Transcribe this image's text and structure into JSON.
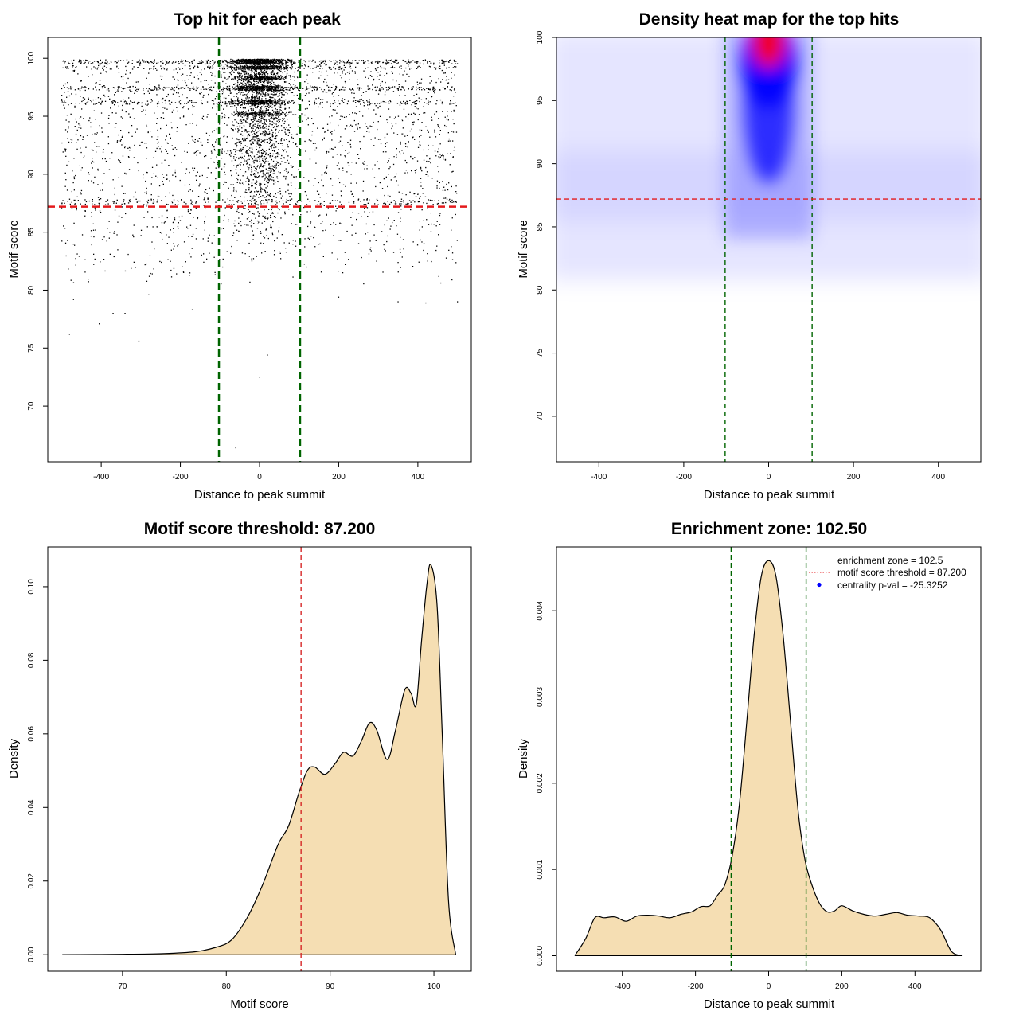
{
  "chart_data": [
    {
      "type": "scatter",
      "title": "Top hit for each peak",
      "xlabel": "Distance to peak summit",
      "ylabel": "Motif score",
      "xlim": [
        -535,
        535
      ],
      "ylim": [
        65.2,
        101.8
      ],
      "xticks": [
        -400,
        -200,
        0,
        200,
        400
      ],
      "yticks": [
        70,
        75,
        80,
        85,
        90,
        95,
        100
      ],
      "vlines": [
        -102.5,
        102.5
      ],
      "hline": 87.2,
      "vline_color": "#006400",
      "hline_color": "#e41a1c",
      "point_color": "#000000",
      "score_bands": [
        99.7,
        99.2,
        98.3,
        97.4,
        96.2,
        95.2,
        94.0,
        93.5
      ],
      "outliers": [
        {
          "x": -480,
          "y": 76.2
        },
        {
          "x": -405,
          "y": 77.1
        },
        {
          "x": -305,
          "y": 75.6
        },
        {
          "x": -370,
          "y": 78.0
        },
        {
          "x": -340,
          "y": 78.0
        },
        {
          "x": 20,
          "y": 74.4
        },
        {
          "x": 0,
          "y": 72.5
        },
        {
          "x": -60,
          "y": 66.4
        },
        {
          "x": 420,
          "y": 78.9
        },
        {
          "x": 500,
          "y": 79.0
        },
        {
          "x": -170,
          "y": 78.3
        },
        {
          "x": -280,
          "y": 79.6
        },
        {
          "x": -470,
          "y": 79.2
        },
        {
          "x": 200,
          "y": 79.4
        },
        {
          "x": 350,
          "y": 79.0
        }
      ]
    },
    {
      "type": "heatmap",
      "title": "Density heat map for the top hits",
      "xlabel": "Distance to peak summit",
      "ylabel": "Motif score",
      "xlim": [
        -500,
        500
      ],
      "ylim": [
        66.4,
        100
      ],
      "xticks": [
        -400,
        -200,
        0,
        200,
        400
      ],
      "yticks": [
        70,
        75,
        80,
        85,
        90,
        95,
        100
      ],
      "vlines": [
        -102.5,
        102.5
      ],
      "hline": 87.2,
      "vline_color": "#006400",
      "hline_color": "#e41a1c",
      "colors": [
        "#ffffff",
        "#0000ff",
        "#ff0000"
      ]
    },
    {
      "type": "area",
      "title": "Motif score threshold: 87.200",
      "xlabel": "Motif score",
      "ylabel": "Density",
      "xlim": [
        62.8,
        103.6
      ],
      "ylim": [
        -0.0045,
        0.1108
      ],
      "xticks": [
        70,
        80,
        90,
        100
      ],
      "yticks": [
        0.0,
        0.02,
        0.04,
        0.06,
        0.08,
        0.1
      ],
      "ytick_labels": [
        "0.00",
        "0.02",
        "0.04",
        "0.06",
        "0.08",
        "0.10"
      ],
      "vlines": [
        87.2
      ],
      "vline_color": "#d62728",
      "fill": "#f5deb3",
      "x": [
        64.2,
        70,
        74,
        77,
        79,
        80.5,
        82,
        83.5,
        85,
        86,
        87,
        87.8,
        88.5,
        89.5,
        90.5,
        91.3,
        92.2,
        93,
        93.8,
        94.5,
        95.5,
        96.3,
        97.2,
        97.8,
        98.3,
        98.8,
        99.3,
        99.7,
        100.3,
        100.8,
        101.4,
        102.1
      ],
      "y": [
        0.0,
        0.0001,
        0.0003,
        0.0008,
        0.002,
        0.004,
        0.01,
        0.019,
        0.03,
        0.035,
        0.044,
        0.05,
        0.051,
        0.049,
        0.052,
        0.055,
        0.054,
        0.058,
        0.063,
        0.061,
        0.053,
        0.061,
        0.072,
        0.071,
        0.068,
        0.085,
        0.1,
        0.106,
        0.095,
        0.06,
        0.015,
        0.0
      ]
    },
    {
      "type": "area",
      "title": "Enrichment zone: 102.50",
      "xlabel": "Distance to peak summit",
      "ylabel": "Density",
      "xlim": [
        -580,
        580
      ],
      "ylim": [
        -0.00018,
        0.00474
      ],
      "xticks": [
        -400,
        -200,
        0,
        200,
        400
      ],
      "yticks": [
        0.0,
        0.001,
        0.002,
        0.003,
        0.004
      ],
      "ytick_labels": [
        "0.000",
        "0.001",
        "0.002",
        "0.003",
        "0.004"
      ],
      "vlines": [
        -102.5,
        102.5
      ],
      "vline_color": "#006400",
      "fill": "#f5deb3",
      "x": [
        -530,
        -500,
        -475,
        -450,
        -420,
        -390,
        -360,
        -330,
        -300,
        -270,
        -240,
        -210,
        -185,
        -160,
        -140,
        -120,
        -100,
        -80,
        -60,
        -40,
        -20,
        0,
        20,
        40,
        60,
        80,
        100,
        120,
        140,
        160,
        180,
        200,
        230,
        260,
        290,
        320,
        350,
        380,
        410,
        440,
        470,
        500,
        530
      ],
      "y": [
        0.0,
        0.0002,
        0.00044,
        0.00044,
        0.00045,
        0.0004,
        0.00046,
        0.00047,
        0.00046,
        0.00044,
        0.00048,
        0.00051,
        0.00057,
        0.00058,
        0.0007,
        0.00082,
        0.00115,
        0.00175,
        0.0027,
        0.0037,
        0.0044,
        0.00458,
        0.0044,
        0.0037,
        0.0027,
        0.0017,
        0.0011,
        0.0008,
        0.0006,
        0.00051,
        0.00052,
        0.00058,
        0.00052,
        0.00048,
        0.00046,
        0.00048,
        0.0005,
        0.00047,
        0.00046,
        0.00044,
        0.0003,
        5e-05,
        0.0
      ],
      "legend": {
        "position": "top-right",
        "entries": [
          {
            "label": "enrichment zone = 102.5",
            "color": "#006400",
            "style": "dotted-line"
          },
          {
            "label": "motif score threshold = 87.200",
            "color": "#e41a1c",
            "style": "dotted-line"
          },
          {
            "label": "centrality p-val = -25.3252",
            "color": "#0000ff",
            "style": "point"
          }
        ]
      }
    }
  ]
}
